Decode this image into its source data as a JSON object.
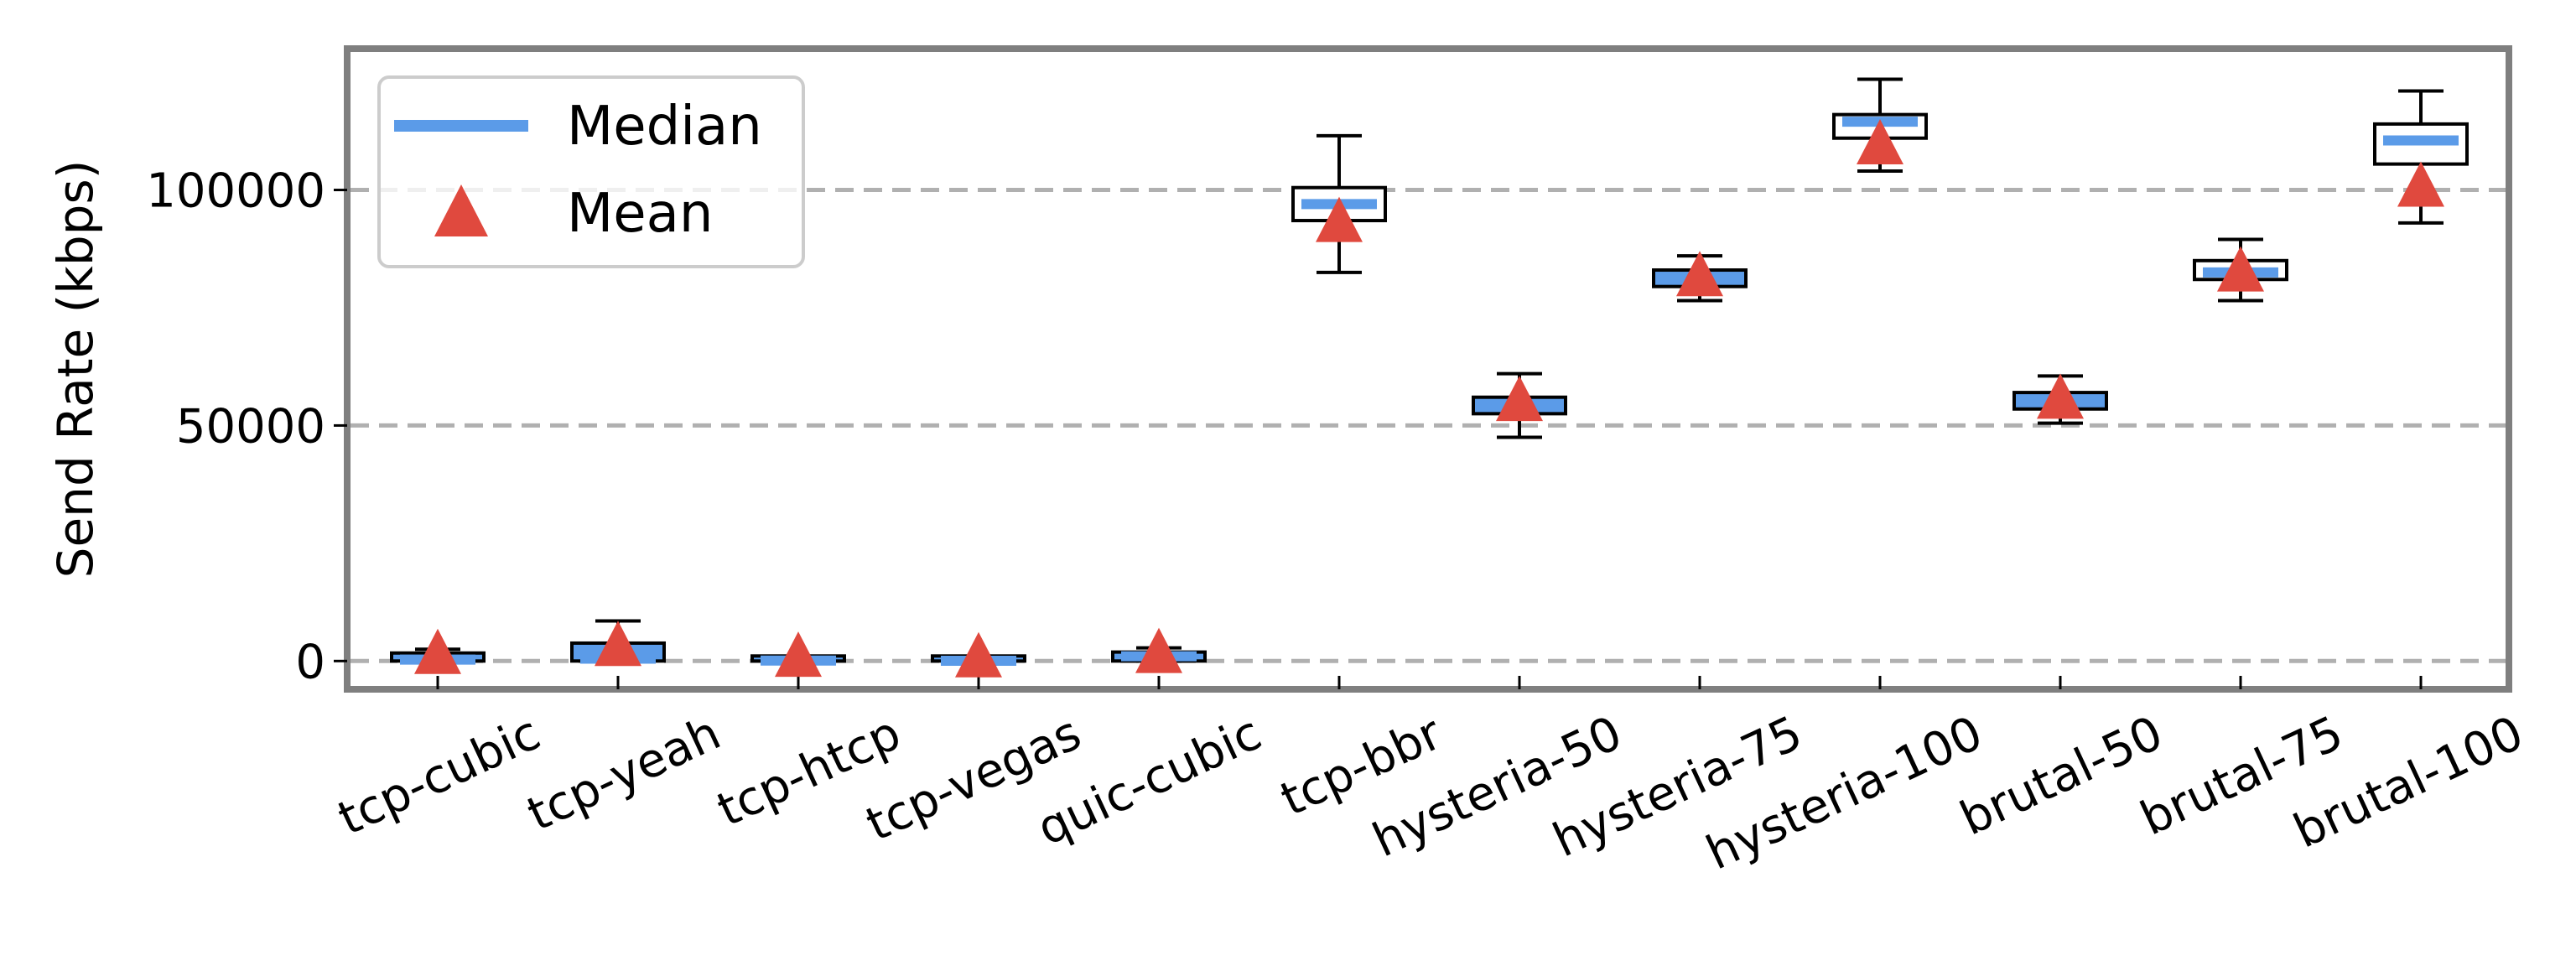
{
  "chart_data": {
    "type": "box",
    "title": "",
    "xlabel": "",
    "ylabel": "Send Rate (kbps)",
    "ylim": [
      -6000,
      130000
    ],
    "yticks": [
      0,
      50000,
      100000
    ],
    "ytick_labels": [
      "0",
      "50000",
      "100000"
    ],
    "grid": "horizontal dashed at y ticks",
    "legend": {
      "placement": "top-left",
      "entries": [
        {
          "label": "Median",
          "marker": "line",
          "color": "#5b9be8"
        },
        {
          "label": "Mean",
          "marker": "triangle",
          "color": "#e0493e"
        }
      ]
    },
    "colors": {
      "median": "#5b9be8",
      "mean": "#e0493e",
      "box_fill_tight": "#5b9be8",
      "frame": "#7f7f7f",
      "grid": "#b0b0b0"
    },
    "categories": [
      "tcp-cubic",
      "tcp-yeah",
      "tcp-htcp",
      "tcp-vegas",
      "quic-cubic",
      "tcp-bbr",
      "hysteria-50",
      "hysteria-75",
      "hysteria-100",
      "brutal-50",
      "brutal-75",
      "brutal-100"
    ],
    "boxes": [
      {
        "whislo": 0,
        "q1": 0,
        "med": 300,
        "q3": 1700,
        "whishi": 2500,
        "mean": 800
      },
      {
        "whislo": 0,
        "q1": 0,
        "med": 500,
        "q3": 3800,
        "whishi": 8500,
        "mean": 2500
      },
      {
        "whislo": 0,
        "q1": 0,
        "med": 100,
        "q3": 300,
        "whishi": 300,
        "mean": 200
      },
      {
        "whislo": 0,
        "q1": 0,
        "med": 50,
        "q3": 200,
        "whishi": 200,
        "mean": 100
      },
      {
        "whislo": 0,
        "q1": 0,
        "med": 1000,
        "q3": 1900,
        "whishi": 2800,
        "mean": 1000
      },
      {
        "whislo": 82500,
        "q1": 93500,
        "med": 97000,
        "q3": 100500,
        "whishi": 111500,
        "mean": 92500
      },
      {
        "whislo": 47500,
        "q1": 52500,
        "med": 54500,
        "q3": 56000,
        "whishi": 61000,
        "mean": 54500
      },
      {
        "whislo": 76500,
        "q1": 79500,
        "med": 81000,
        "q3": 83000,
        "whishi": 86000,
        "mean": 81000
      },
      {
        "whislo": 104000,
        "q1": 111000,
        "med": 114500,
        "q3": 116000,
        "whishi": 123500,
        "mean": 109000
      },
      {
        "whislo": 50500,
        "q1": 53500,
        "med": 55500,
        "q3": 57000,
        "whishi": 60500,
        "mean": 55000
      },
      {
        "whislo": 76500,
        "q1": 81000,
        "med": 82500,
        "q3": 85000,
        "whishi": 89500,
        "mean": 82000
      },
      {
        "whislo": 93000,
        "q1": 105500,
        "med": 110500,
        "q3": 114000,
        "whishi": 121000,
        "mean": 100000
      }
    ]
  }
}
